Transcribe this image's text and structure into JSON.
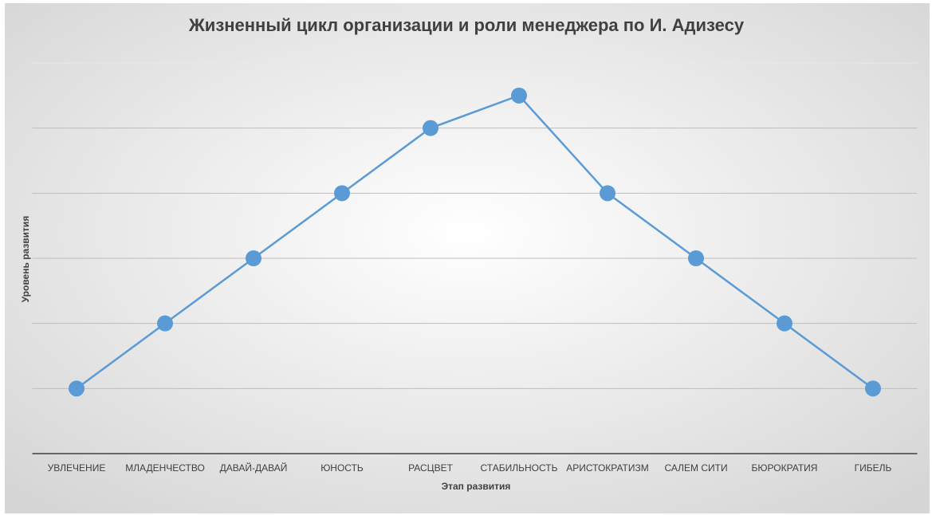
{
  "chart_data": {
    "type": "line",
    "title": "Жизненный цикл организации и роли менеджера по И. Адизесу",
    "x_label": "Этап развития",
    "y_label": "Уровень развития",
    "categories": [
      "УВЛЕЧЕНИЕ",
      "МЛАДЕНЧЕСТВО",
      "ДАВАЙ-ДАВАЙ",
      "ЮНОСТЬ",
      "РАСЦВЕТ",
      "СТАБИЛЬНОСТЬ",
      "АРИСТОКРАТИЗМ",
      "САЛЕМ СИТИ",
      "БЮРОКРАТИЯ",
      "ГИБЕЛЬ"
    ],
    "series": [
      {
        "name": "Уровень развития",
        "color": "#5b9bd5",
        "values": [
          1,
          2,
          3,
          4,
          5,
          5.5,
          4,
          3,
          2,
          1
        ]
      }
    ],
    "ylim": [
      0,
      6
    ],
    "yticks": [
      0,
      1,
      2,
      3,
      4,
      5,
      6
    ],
    "grid": true
  }
}
